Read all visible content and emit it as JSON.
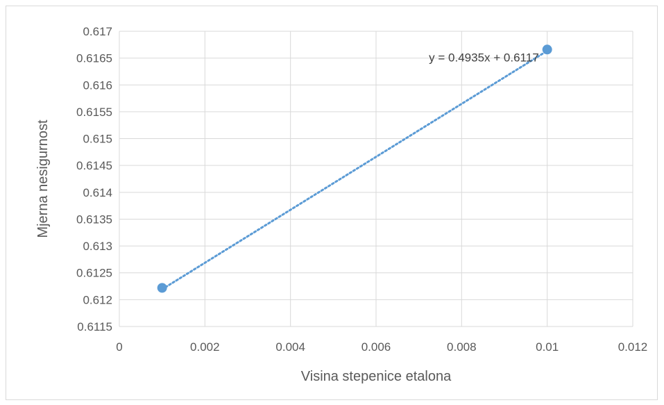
{
  "chart_data": {
    "type": "scatter",
    "title": "",
    "xlabel": "Visina stepenice etalona",
    "ylabel": "Mjerna nesigurnost",
    "xlim": [
      0,
      0.012
    ],
    "ylim": [
      0.6115,
      0.617
    ],
    "x_ticks": [
      "0",
      "0.002",
      "0.004",
      "0.006",
      "0.008",
      "0.01",
      "0.012"
    ],
    "y_ticks": [
      "0.6115",
      "0.612",
      "0.6125",
      "0.613",
      "0.6135",
      "0.614",
      "0.6145",
      "0.615",
      "0.6155",
      "0.616",
      "0.6165",
      "0.617"
    ],
    "grid": true,
    "series": [
      {
        "points": [
          {
            "x": 0.001,
            "y": 0.61222
          },
          {
            "x": 0.01,
            "y": 0.61666
          }
        ],
        "color": "#5b9bd5"
      }
    ],
    "trendline": {
      "type": "linear",
      "slope": 0.4935,
      "intercept": 0.6117,
      "style": "dotted",
      "color": "#5b9bd5",
      "equation_label": "y = 0.4935x + 0.6117"
    }
  }
}
